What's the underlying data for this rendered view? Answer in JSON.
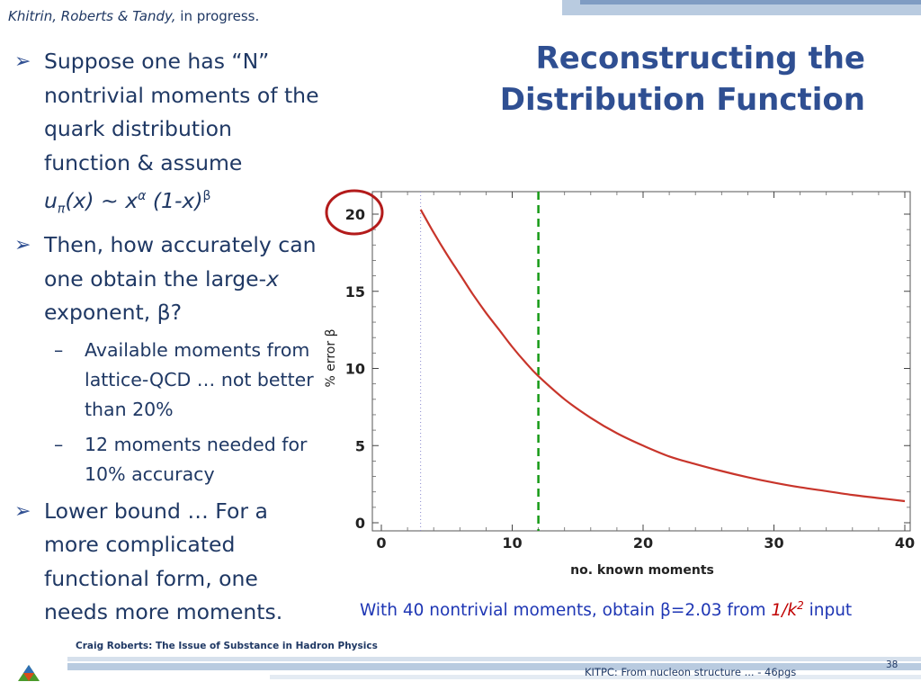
{
  "header": {
    "credit_italic": "Khitrin, Roberts & Tandy,",
    "credit_rest": " in progress.",
    "title_line1": "Reconstructing the",
    "title_line2": "Distribution Function"
  },
  "bullets": {
    "b1_text": "Suppose one has “N” nontrivial moments of the  quark distribution function & assume",
    "b1_formula": {
      "u": "u",
      "pi": "π",
      "x_part": "(x) ~ x",
      "alpha": "α",
      "one_minus": " (1-x)",
      "beta": "β"
    },
    "b2_text_a": "Then, how accurately can one obtain the large-",
    "b2_x": "x",
    "b2_text_b": " exponent, β?",
    "sub1": "Available moments from lattice-QCD … not better than 20%",
    "sub2": "12 moments needed for 10% accuracy",
    "b3_text": "Lower bound … For a more complicated functional form, one needs more moments.",
    "arrow_glyph": "➢",
    "dash_glyph": "–"
  },
  "caption": {
    "text_a": "With 40 nontrivial moments, obtain β=2.03 from ",
    "red": "1/k",
    "sup": "2",
    "text_b": " input"
  },
  "footer": {
    "left": "Craig Roberts: The Issue of Substance in Hadron Physics",
    "right": "KITPC: From nucleon structure ... - 46pgs",
    "page": "38"
  },
  "colors": {
    "curve": "#c8352b",
    "dashed_line": "#169a16",
    "highlight_circle": "#b31b1b",
    "dotted_line": "#8888cc"
  },
  "chart_data": {
    "type": "line",
    "xlabel": "no. known moments",
    "ylabel": "% error β",
    "xlim": [
      0,
      40
    ],
    "ylim": [
      0,
      20
    ],
    "xticks": [
      0,
      10,
      20,
      30,
      40
    ],
    "yticks": [
      0,
      5,
      10,
      15,
      20
    ],
    "series": [
      {
        "x": [
          3,
          4,
          5,
          6,
          7,
          8,
          9,
          10,
          11,
          12,
          14,
          16,
          18,
          20,
          22,
          24,
          26,
          28,
          30,
          32,
          34,
          36,
          38,
          40
        ],
        "values": [
          20.3,
          18.8,
          17.4,
          16.1,
          14.8,
          13.6,
          12.5,
          11.4,
          10.4,
          9.5,
          8.0,
          6.8,
          5.8,
          5.0,
          4.3,
          3.8,
          3.35,
          2.95,
          2.6,
          2.3,
          2.05,
          1.8,
          1.6,
          1.4
        ]
      }
    ],
    "vertical_lines": [
      {
        "x": 12,
        "style": "dashed"
      },
      {
        "x": 3,
        "style": "dotted"
      }
    ],
    "annotations": [
      {
        "type": "circle",
        "target": "y-tick-20"
      }
    ]
  }
}
